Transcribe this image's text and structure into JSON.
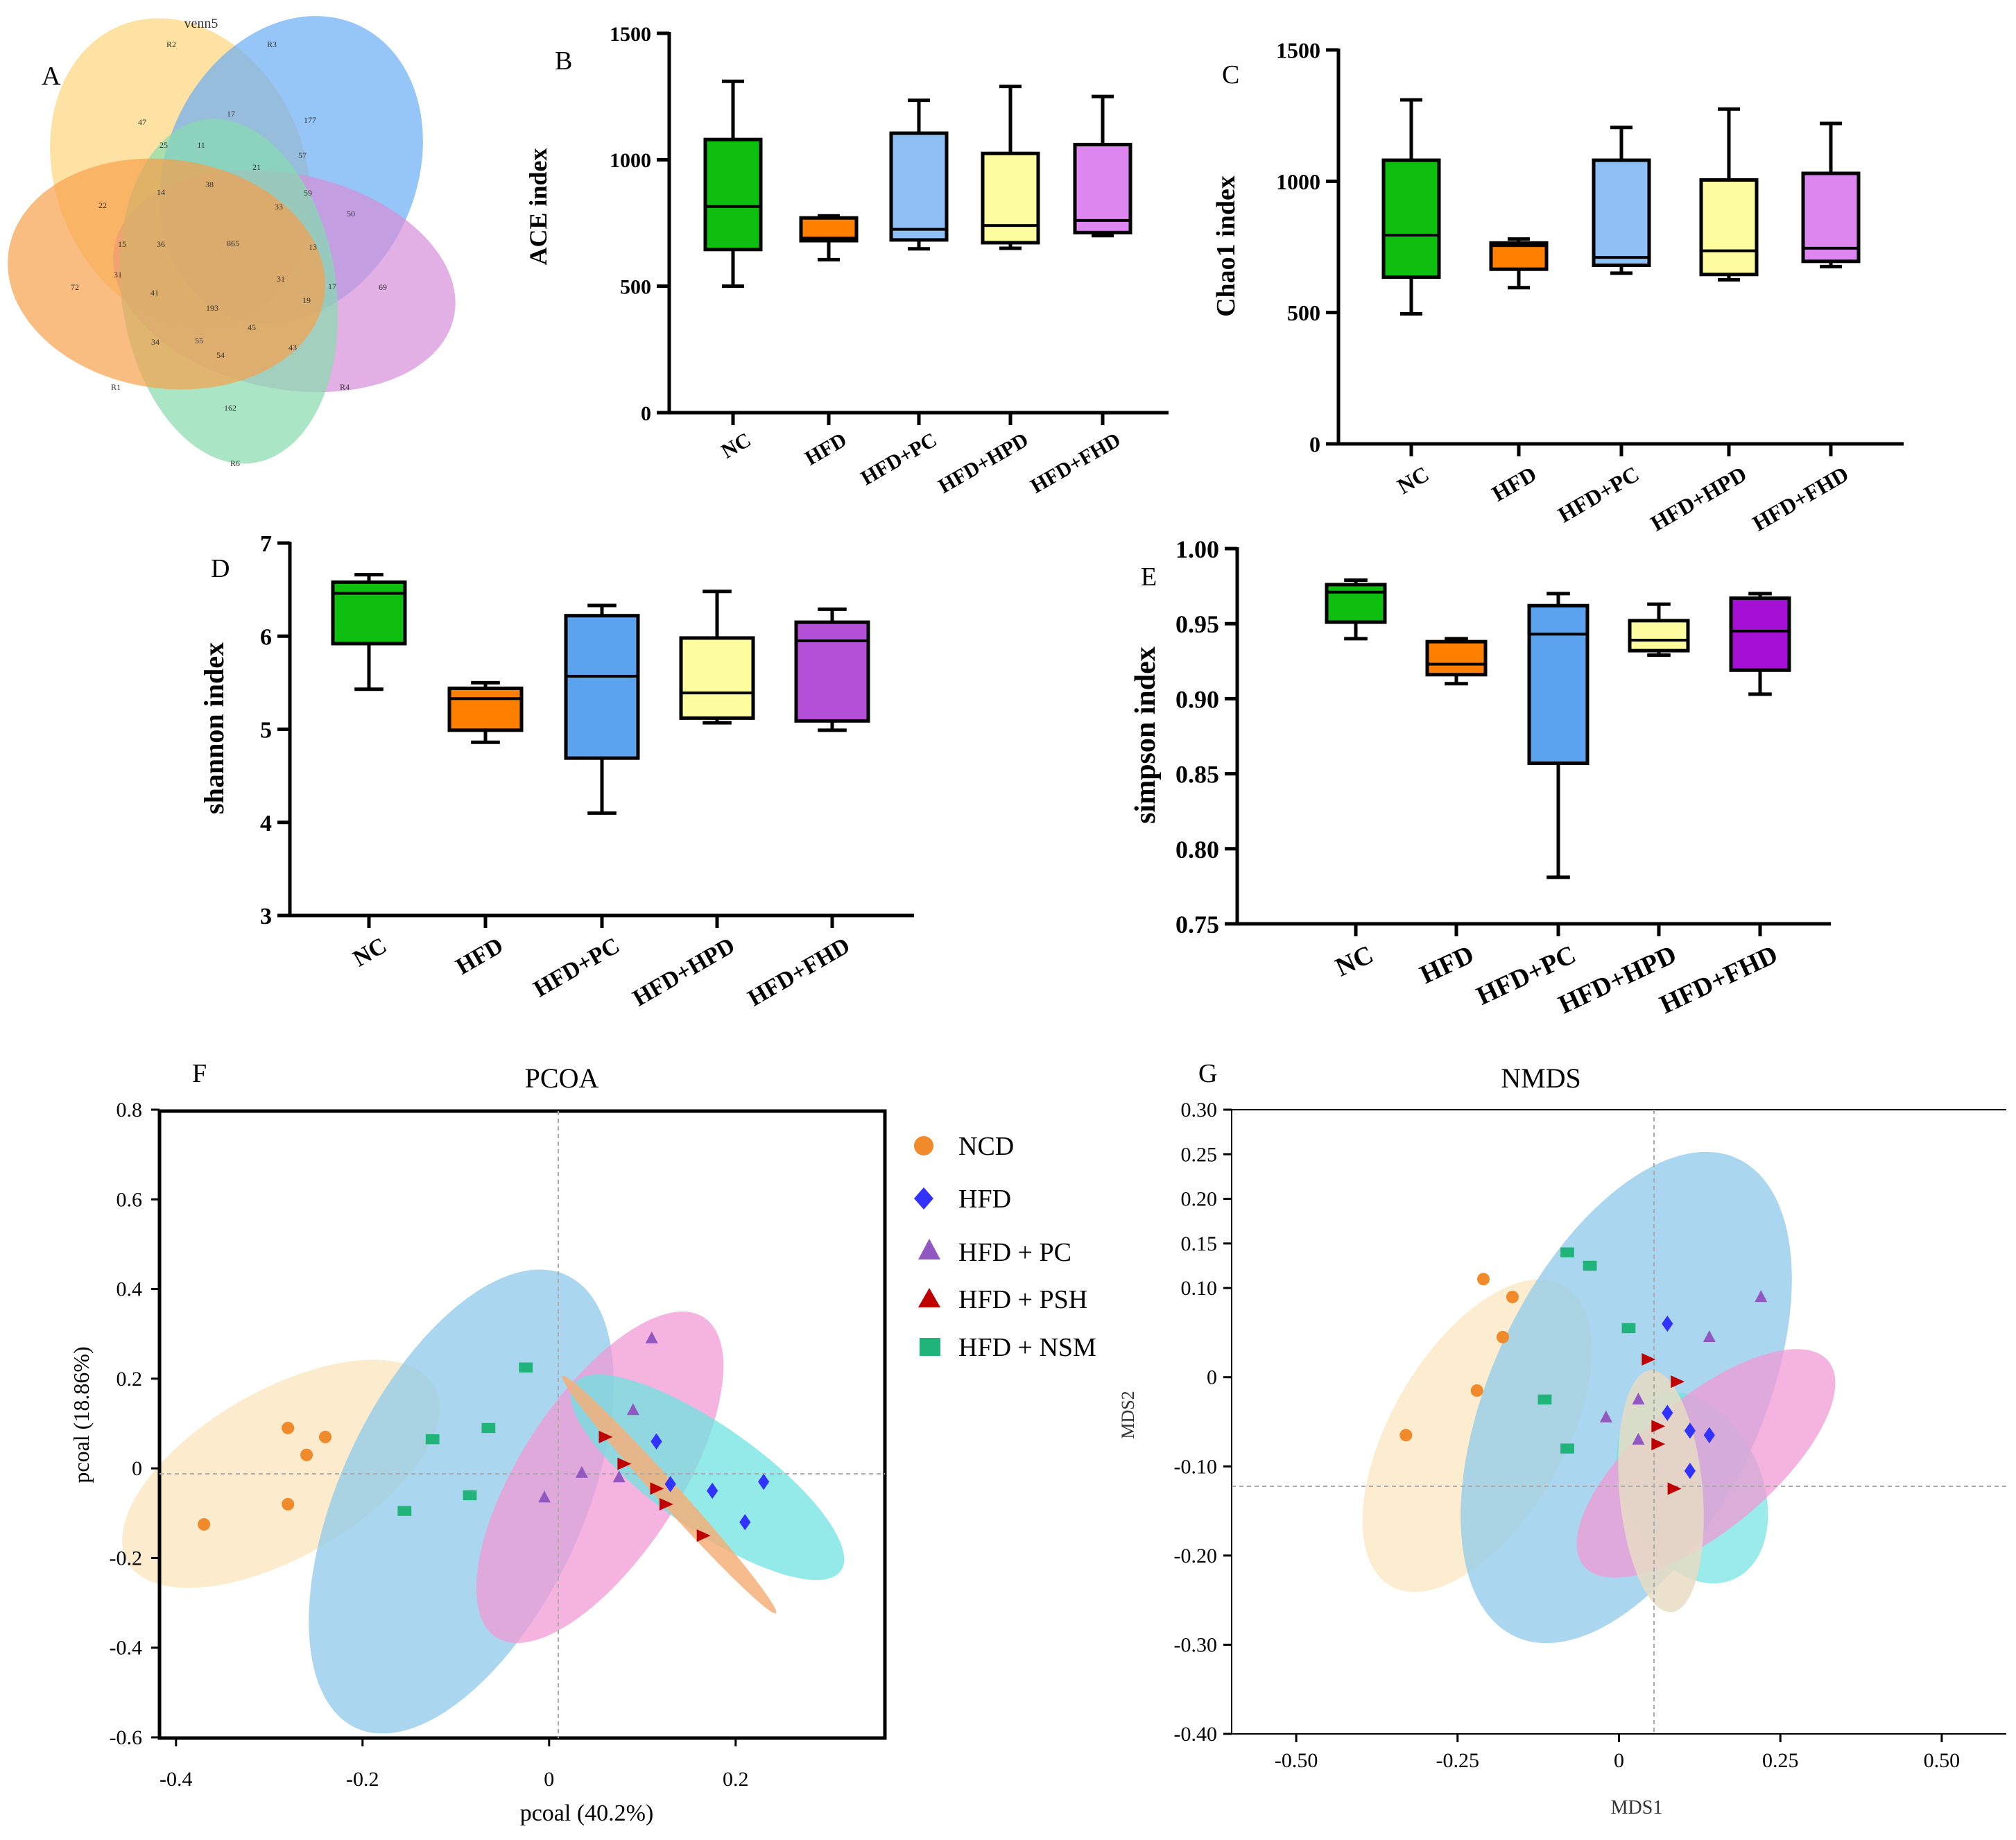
{
  "figure": {
    "panels": [
      "A",
      "B",
      "C",
      "D",
      "E",
      "F",
      "G"
    ]
  },
  "colors": {
    "NC": "#0fbf0f",
    "HFD": "#ff7f00",
    "HFD+PC": "#8ec0f5",
    "HFD+HPD": "#fdfc9f",
    "HFD+FHD": "#dd86f0",
    "D_HFD+PC": "#5ba3ee",
    "D_HFD+FHD": "#b44fd8",
    "E_HFD+FHD": "#a40fd4",
    "venn_R1": "#f7a04b",
    "venn_R2": "#fdd67c",
    "venn_R3": "#6aaef4",
    "venn_R4": "#d58ed9",
    "venn_R6": "#86dcae",
    "NCD": "#f08a2a",
    "PC": "#9058c0",
    "PSH": "#c00000",
    "NSM": "#20b37a",
    "ell_yellow": "#fce9c4",
    "ell_blue": "#8ec9e9",
    "ell_pink": "#f19ad6",
    "ell_cyan": "#6fe3e0",
    "ell_orange": "#f5b07a",
    "ell_beige": "#e8dcc4"
  },
  "chart_data": [
    {
      "panel": "A",
      "type": "venn",
      "title": "venn5",
      "sets": [
        "R1",
        "R2",
        "R3",
        "R4",
        "R6"
      ],
      "counts": [
        "47",
        "17",
        "177",
        "25",
        "11",
        "21",
        "57",
        "22",
        "14",
        "38",
        "33",
        "59",
        "50",
        "15",
        "36",
        "865",
        "13",
        "31",
        "41",
        "31",
        "17",
        "69",
        "72",
        "193",
        "19",
        "34",
        "55",
        "54",
        "45",
        "43",
        "162"
      ]
    },
    {
      "panel": "B",
      "type": "boxplot",
      "ylabel": "ACE index",
      "ylim": [
        0,
        1500
      ],
      "yticks": [
        "0",
        "500",
        "1000",
        "1500"
      ],
      "categories": [
        "NC",
        "HFD",
        "HFD+PC",
        "HFD+HPD",
        "HFD+FHD"
      ],
      "boxes": [
        {
          "min": 500,
          "q1": 645,
          "median": 815,
          "q3": 1080,
          "max": 1310
        },
        {
          "min": 605,
          "q1": 680,
          "median": 690,
          "q3": 770,
          "max": 778
        },
        {
          "min": 648,
          "q1": 683,
          "median": 725,
          "q3": 1105,
          "max": 1235
        },
        {
          "min": 650,
          "q1": 672,
          "median": 740,
          "q3": 1025,
          "max": 1290
        },
        {
          "min": 700,
          "q1": 712,
          "median": 760,
          "q3": 1060,
          "max": 1250
        }
      ]
    },
    {
      "panel": "C",
      "type": "boxplot",
      "ylabel": "Chao1 index",
      "ylim": [
        0,
        1500
      ],
      "yticks": [
        "0",
        "500",
        "1000",
        "1500"
      ],
      "categories": [
        "NC",
        "HFD",
        "HFD+PC",
        "HFD+HPD",
        "HFD+FHD"
      ],
      "boxes": [
        {
          "min": 495,
          "q1": 635,
          "median": 795,
          "q3": 1080,
          "max": 1310
        },
        {
          "min": 595,
          "q1": 665,
          "median": 755,
          "q3": 765,
          "max": 780
        },
        {
          "min": 650,
          "q1": 680,
          "median": 710,
          "q3": 1080,
          "max": 1205
        },
        {
          "min": 625,
          "q1": 645,
          "median": 735,
          "q3": 1005,
          "max": 1275
        },
        {
          "min": 675,
          "q1": 695,
          "median": 745,
          "q3": 1030,
          "max": 1220
        }
      ]
    },
    {
      "panel": "D",
      "type": "boxplot",
      "ylabel": "shannon index",
      "ylim": [
        3,
        7
      ],
      "yticks": [
        "3",
        "4",
        "5",
        "6",
        "7"
      ],
      "categories": [
        "NC",
        "HFD",
        "HFD+PC",
        "HFD+HPD",
        "HFD+FHD"
      ],
      "boxes": [
        {
          "min": 5.43,
          "q1": 5.92,
          "median": 6.46,
          "q3": 6.58,
          "max": 6.66
        },
        {
          "min": 4.86,
          "q1": 4.99,
          "median": 5.33,
          "q3": 5.44,
          "max": 5.5
        },
        {
          "min": 4.1,
          "q1": 4.69,
          "median": 5.57,
          "q3": 6.22,
          "max": 6.33
        },
        {
          "min": 5.07,
          "q1": 5.12,
          "median": 5.39,
          "q3": 5.98,
          "max": 6.48
        },
        {
          "min": 4.99,
          "q1": 5.09,
          "median": 5.95,
          "q3": 6.15,
          "max": 6.29
        }
      ]
    },
    {
      "panel": "E",
      "type": "boxplot",
      "ylabel": "simpson index",
      "ylim": [
        0.75,
        1.0
      ],
      "yticks": [
        "0.75",
        "0.80",
        "0.85",
        "0.90",
        "0.95",
        "1.00"
      ],
      "categories": [
        "NC",
        "HFD",
        "HFD+PC",
        "HFD+HPD",
        "HFD+FHD"
      ],
      "boxes": [
        {
          "min": 0.94,
          "q1": 0.951,
          "median": 0.971,
          "q3": 0.976,
          "max": 0.979
        },
        {
          "min": 0.91,
          "q1": 0.916,
          "median": 0.923,
          "q3": 0.938,
          "max": 0.94
        },
        {
          "min": 0.781,
          "q1": 0.857,
          "median": 0.943,
          "q3": 0.962,
          "max": 0.97
        },
        {
          "min": 0.929,
          "q1": 0.932,
          "median": 0.939,
          "q3": 0.952,
          "max": 0.963
        },
        {
          "min": 0.903,
          "q1": 0.919,
          "median": 0.945,
          "q3": 0.967,
          "max": 0.97
        }
      ]
    },
    {
      "panel": "F",
      "type": "scatter",
      "title": "PCOA",
      "xlabel": "pcoal (40.2%)",
      "ylabel": "pcoal (18.86%)",
      "xlim": [
        -0.44,
        0.36
      ],
      "ylim": [
        -0.6,
        0.8
      ],
      "xticks": [
        "-0.4",
        "-0.2",
        "0",
        "0.2"
      ],
      "yticks": [
        "-0.6",
        "-0.4",
        "-0.2",
        "0",
        "0.2",
        "0.4",
        "0.6",
        "0.8"
      ],
      "series": [
        {
          "name": "NCD",
          "marker": "circle",
          "points": [
            [
              -0.28,
              0.09
            ],
            [
              -0.24,
              0.07
            ],
            [
              -0.26,
              0.03
            ],
            [
              -0.28,
              -0.08
            ],
            [
              -0.37,
              -0.125
            ]
          ]
        },
        {
          "name": "HFD",
          "marker": "diamond",
          "points": [
            [
              0.115,
              0.06
            ],
            [
              0.13,
              -0.035
            ],
            [
              0.175,
              -0.05
            ],
            [
              0.23,
              -0.03
            ],
            [
              0.21,
              -0.12
            ]
          ]
        },
        {
          "name": "HFD + PC",
          "marker": "triangle",
          "points": [
            [
              0.11,
              0.29
            ],
            [
              0.09,
              0.13
            ],
            [
              0.035,
              -0.01
            ],
            [
              0.075,
              -0.02
            ],
            [
              -0.005,
              -0.065
            ]
          ]
        },
        {
          "name": "HFD + PSH",
          "marker": "triangle",
          "points": [
            [
              0.06,
              0.07
            ],
            [
              0.08,
              0.01
            ],
            [
              0.115,
              -0.045
            ],
            [
              0.125,
              -0.08
            ],
            [
              0.165,
              -0.15
            ]
          ]
        },
        {
          "name": "HFD + NSM",
          "marker": "square",
          "points": [
            [
              -0.025,
              0.225
            ],
            [
              -0.065,
              0.09
            ],
            [
              -0.125,
              0.065
            ],
            [
              -0.085,
              -0.06
            ],
            [
              -0.155,
              -0.095
            ]
          ]
        }
      ]
    },
    {
      "panel": "G",
      "type": "scatter",
      "title": "NMDS",
      "xlabel": "MDS1",
      "ylabel": "MDS2",
      "xlim": [
        -0.6,
        0.6
      ],
      "ylim": [
        -0.4,
        0.3
      ],
      "xticks": [
        "-0.50",
        "-0.25",
        "0",
        "0.25",
        "0.50"
      ],
      "yticks": [
        "-0.40",
        "-0.30",
        "-0.20",
        "-0.10",
        "0",
        "0.10",
        "0.15",
        "0.20",
        "0.25",
        "0.30"
      ],
      "series": [
        {
          "name": "NCD",
          "marker": "circle",
          "points": [
            [
              -0.21,
              0.11
            ],
            [
              -0.165,
              0.09
            ],
            [
              -0.18,
              0.045
            ],
            [
              -0.22,
              -0.015
            ],
            [
              -0.33,
              -0.065
            ]
          ]
        },
        {
          "name": "HFD",
          "marker": "diamond",
          "points": [
            [
              0.075,
              0.06
            ],
            [
              0.075,
              -0.04
            ],
            [
              0.11,
              -0.06
            ],
            [
              0.14,
              -0.065
            ],
            [
              0.11,
              -0.105
            ]
          ]
        },
        {
          "name": "HFD + PC",
          "marker": "triangle",
          "points": [
            [
              0.22,
              0.09
            ],
            [
              0.14,
              0.045
            ],
            [
              0.03,
              -0.025
            ],
            [
              -0.02,
              -0.045
            ],
            [
              0.03,
              -0.07
            ]
          ]
        },
        {
          "name": "HFD + PSH",
          "marker": "triangle",
          "points": [
            [
              0.045,
              0.02
            ],
            [
              0.09,
              -0.005
            ],
            [
              0.06,
              -0.055
            ],
            [
              0.06,
              -0.075
            ],
            [
              0.085,
              -0.125
            ]
          ]
        },
        {
          "name": "HFD + NSM",
          "marker": "square",
          "points": [
            [
              -0.08,
              0.14
            ],
            [
              -0.045,
              0.125
            ],
            [
              0.015,
              0.055
            ],
            [
              -0.115,
              -0.025
            ],
            [
              -0.08,
              -0.08
            ]
          ]
        }
      ]
    }
  ],
  "legend": [
    {
      "label": "NCD",
      "marker": "circle"
    },
    {
      "label": "HFD",
      "marker": "diamond"
    },
    {
      "label": "HFD + PC",
      "marker": "triangle"
    },
    {
      "label": "HFD + PSH",
      "marker": "triangle"
    },
    {
      "label": "HFD + NSM",
      "marker": "square"
    }
  ],
  "xaxis_labels": [
    "NC",
    "HFD",
    "HFD+PC",
    "HFD+HPD",
    "HFD+FHD"
  ]
}
